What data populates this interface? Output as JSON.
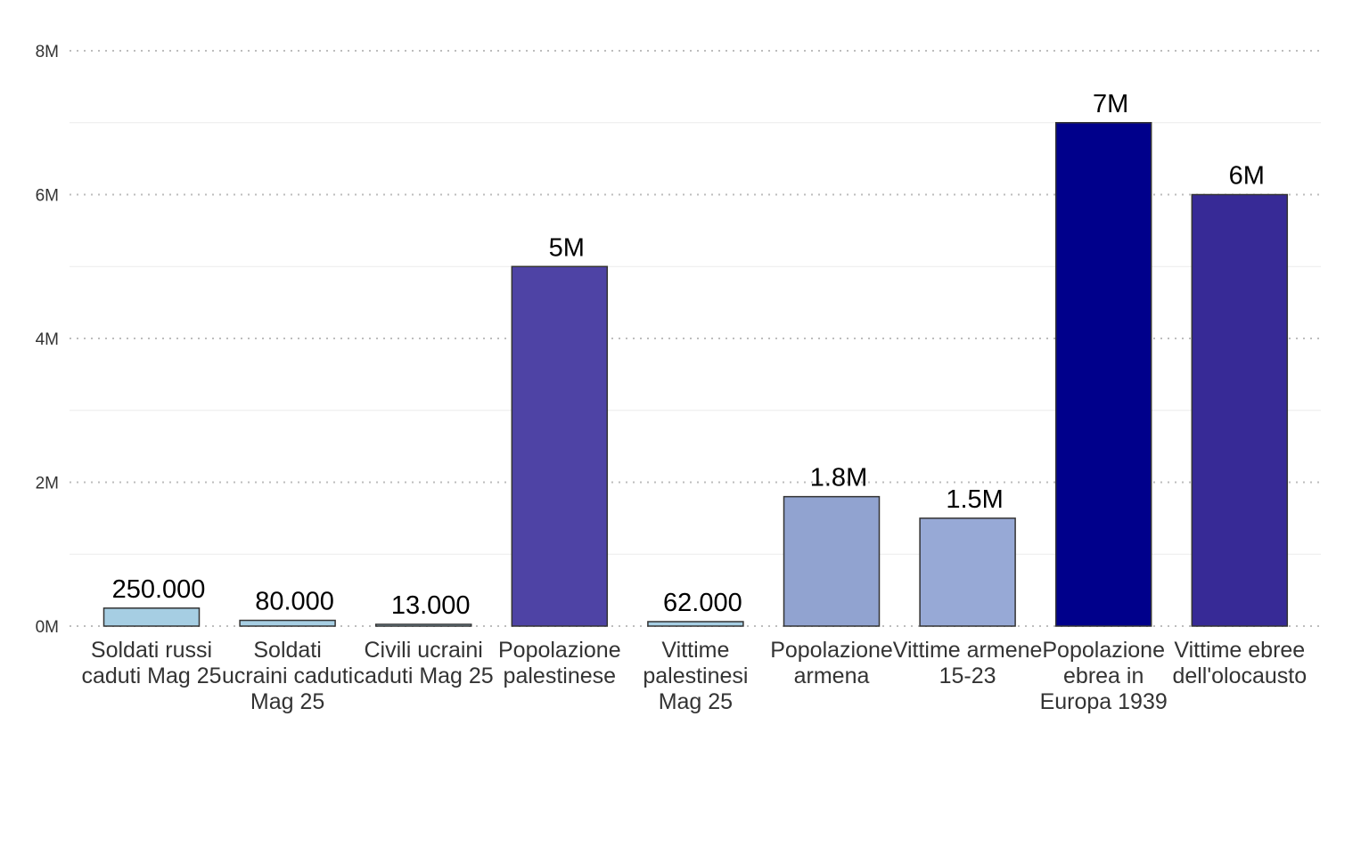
{
  "chart_data": {
    "type": "bar",
    "title": "",
    "xlabel": "",
    "ylabel": "",
    "ylim": [
      0,
      8000000
    ],
    "y_ticks": [
      {
        "value": 0,
        "label": "0M"
      },
      {
        "value": 2000000,
        "label": "2M"
      },
      {
        "value": 4000000,
        "label": "4M"
      },
      {
        "value": 6000000,
        "label": "6M"
      },
      {
        "value": 8000000,
        "label": "8M"
      }
    ],
    "minor_grid": [
      1000000,
      3000000,
      5000000,
      7000000
    ],
    "grid": true,
    "legend": "none",
    "bars": [
      {
        "category": [
          "Soldati russi",
          "caduti Mag 25"
        ],
        "value": 250000,
        "label": "250.000",
        "color": "#a6cee3"
      },
      {
        "category": [
          "Soldati",
          "ucraini caduti",
          "Mag 25"
        ],
        "value": 80000,
        "label": "80.000",
        "color": "#a6cee3"
      },
      {
        "category": [
          "Civili ucraini",
          "caduti Mag 25"
        ],
        "value": 13000,
        "label": "13.000",
        "color": "#a6cee3"
      },
      {
        "category": [
          "Popolazione",
          "palestinese"
        ],
        "value": 5000000,
        "label": "5M",
        "color": "#4e43a5"
      },
      {
        "category": [
          "Vittime",
          "palestinesi",
          "Mag 25"
        ],
        "value": 62000,
        "label": "62.000",
        "color": "#a6cee3"
      },
      {
        "category": [
          "Popolazione",
          "armena"
        ],
        "value": 1800000,
        "label": "1.8M",
        "color": "#91a3d0"
      },
      {
        "category": [
          "Vittime armene",
          "15-23"
        ],
        "value": 1500000,
        "label": "1.5M",
        "color": "#97a9d6"
      },
      {
        "category": [
          "Popolazione",
          "ebrea in",
          "Europa 1939"
        ],
        "value": 7000000,
        "label": "7M",
        "color": "#00008b"
      },
      {
        "category": [
          "Vittime ebree",
          "dell'olocausto"
        ],
        "value": 6000000,
        "label": "6M",
        "color": "#372a96"
      }
    ]
  }
}
